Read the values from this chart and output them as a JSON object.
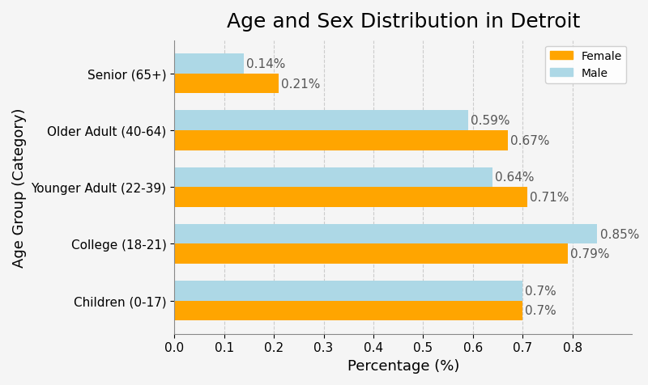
{
  "title": "Age and Sex Distribution in Detroit",
  "xlabel": "Percentage (%)",
  "ylabel": "Age Group (Category)",
  "categories": [
    "Children (0-17)",
    "College (18-21)",
    "Younger Adult (22-39)",
    "Older Adult (40-64)",
    "Senior (65+)"
  ],
  "male_values": [
    0.7,
    0.85,
    0.64,
    0.59,
    0.14
  ],
  "female_values": [
    0.7,
    0.79,
    0.71,
    0.67,
    0.21
  ],
  "male_labels": [
    "0.7%",
    "0.85%",
    "0.64%",
    "0.59%",
    "0.14%"
  ],
  "female_labels": [
    "0.7%",
    "0.79%",
    "0.71%",
    "0.67%",
    "0.21%"
  ],
  "male_color": "#ADD8E6",
  "female_color": "#FFA500",
  "background_color": "#f5f5f5",
  "bar_height": 0.35,
  "xlim": [
    0,
    0.92
  ],
  "xticks": [
    0.0,
    0.1,
    0.2,
    0.3,
    0.4,
    0.5,
    0.6,
    0.7,
    0.8
  ],
  "grid_color": "#cccccc",
  "label_color": "#555555",
  "title_fontsize": 18,
  "axis_label_fontsize": 13,
  "tick_fontsize": 11,
  "annotation_fontsize": 11
}
